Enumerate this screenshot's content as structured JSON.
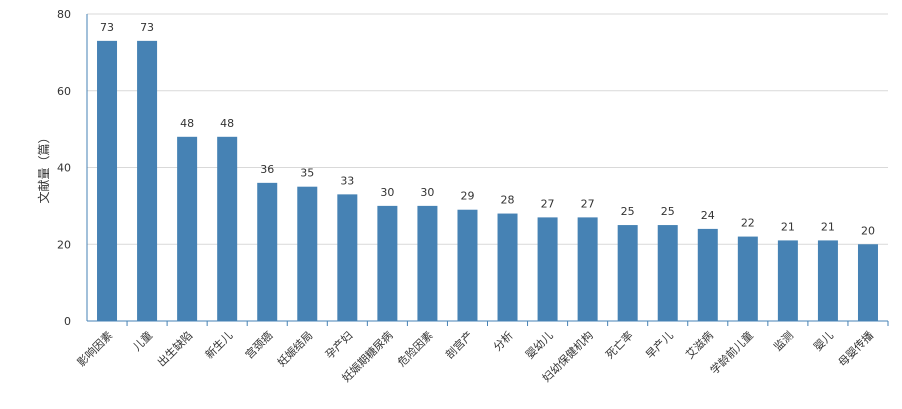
{
  "chart_data": {
    "type": "bar",
    "title": "",
    "xlabel": "",
    "ylabel": "文献量（篇）",
    "ylim": [
      0,
      80
    ],
    "yticks": [
      0,
      20,
      40,
      60,
      80
    ],
    "grid": true,
    "bar_color": "#4682b4",
    "categories": [
      "影响因素",
      "儿童",
      "出生缺陷",
      "新生儿",
      "宫颈癌",
      "妊娠结局",
      "孕产妇",
      "妊娠期糖尿病",
      "危险因素",
      "剖宫产",
      "分析",
      "婴幼儿",
      "妇幼保健机构",
      "死亡率",
      "早产儿",
      "艾滋病",
      "学龄前儿童",
      "监测",
      "婴儿",
      "母婴传播"
    ],
    "values": [
      73,
      73,
      48,
      48,
      36,
      35,
      33,
      30,
      30,
      29,
      28,
      27,
      27,
      25,
      25,
      24,
      22,
      21,
      21,
      20
    ]
  }
}
